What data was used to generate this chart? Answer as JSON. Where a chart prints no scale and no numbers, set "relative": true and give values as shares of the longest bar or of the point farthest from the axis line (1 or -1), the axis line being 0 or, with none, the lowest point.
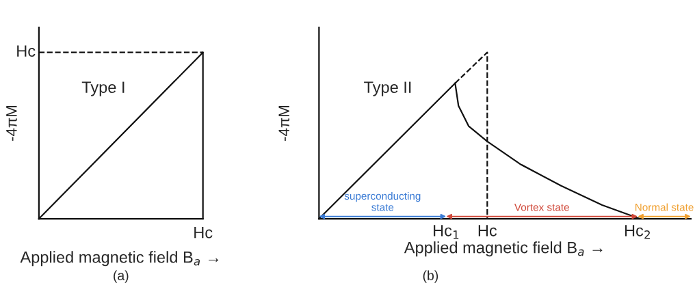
{
  "chart_data": [
    {
      "type": "line",
      "relative": true,
      "xlabel": "Applied magnetic field B$_{a}$ →",
      "ylabel": "-4πM",
      "grid": false,
      "legend": false,
      "categories": [
        null,
        null
      ],
      "series": [
        {
          "color": "#111111",
          "values": [
            0,
            1
          ],
          "line_style": "solid"
        }
      ],
      "ref_lines": [
        {
          "axis": "y",
          "value": 1,
          "label": "Hc",
          "line_style": "dashed",
          "color": "#111111"
        }
      ],
      "annotations": [
        "Type I",
        "Hc",
        "(a)"
      ]
    },
    {
      "type": "line",
      "relative": true,
      "xlabel": "Applied magnetic field B$_{a}$ →",
      "ylabel": "-4πM",
      "xlim": [
        0,
        2.21
      ],
      "xticks": [
        {
          "value": 0.756,
          "label": "Hc$_{1}$"
        },
        {
          "value": 1,
          "label": "Hc"
        },
        {
          "value": 1.894,
          "label": "Hc$_{2}$"
        }
      ],
      "grid": false,
      "legend": false,
      "series": [
        {
          "color": "#111111",
          "x": [
            0,
            0.809
          ],
          "values": [
            0,
            0.815
          ],
          "line_style": "solid"
        },
        {
          "color": "#111111",
          "x": [
            0.809,
            1,
            1
          ],
          "values": [
            0.815,
            1,
            0
          ],
          "line_style": "dashed"
        },
        {
          "color": "#111111",
          "x": [
            0.809,
            0.829,
            0.89,
            1,
            1.195,
            1.439,
            1.683,
            1.907
          ],
          "values": [
            0.815,
            0.679,
            0.556,
            0.465,
            0.329,
            0.198,
            0.082,
            0
          ],
          "line_style": "solid"
        }
      ],
      "annotations": [
        "Type II",
        "superconducting\nstate",
        "Vortex state",
        "Normal state",
        "(b)"
      ]
    }
  ]
}
